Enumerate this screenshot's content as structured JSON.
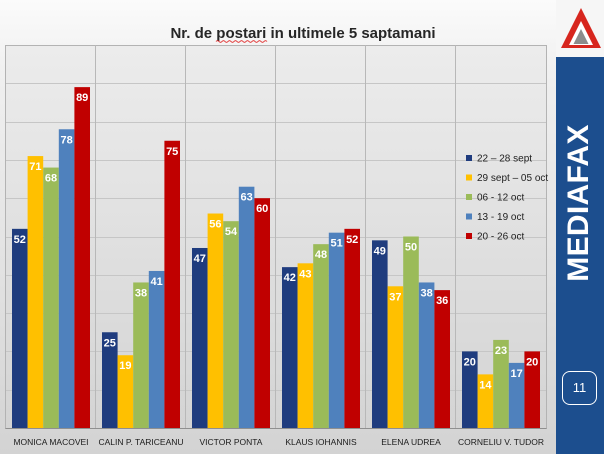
{
  "slide": {
    "brand": "MEDIAFAX",
    "page_number": "11",
    "logo_icon": "mediafax-triangle-logo-icon",
    "band_color": "#1c4e8e",
    "logo_color": "#d7261e"
  },
  "chart_data": {
    "type": "bar",
    "title": "Nr. de postari in ultimele 5 saptamani",
    "categories": [
      "MONICA MACOVEI",
      "CALIN P. TARICEANU",
      "VICTOR PONTA",
      "KLAUS IOHANNIS",
      "ELENA UDREA",
      "CORNELIU V. TUDOR"
    ],
    "series": [
      {
        "name": "22 – 28 sept",
        "color": "#1f3c7e",
        "values": [
          52,
          25,
          47,
          42,
          49,
          20
        ]
      },
      {
        "name": "29 sept – 05 oct",
        "color": "#ffc000",
        "values": [
          71,
          19,
          56,
          43,
          37,
          14
        ]
      },
      {
        "name": "06 - 12 oct",
        "color": "#9bbb59",
        "values": [
          68,
          38,
          54,
          48,
          50,
          23
        ]
      },
      {
        "name": "13 - 19 oct",
        "color": "#4f81bd",
        "values": [
          78,
          41,
          63,
          51,
          38,
          17
        ]
      },
      {
        "name": "20 - 26 oct",
        "color": "#c00000",
        "values": [
          89,
          75,
          60,
          52,
          36,
          20
        ]
      }
    ],
    "ylim": [
      0,
      100
    ],
    "grid": true,
    "legend": "right",
    "data_labels": true,
    "data_label_color": "#ffffff"
  }
}
